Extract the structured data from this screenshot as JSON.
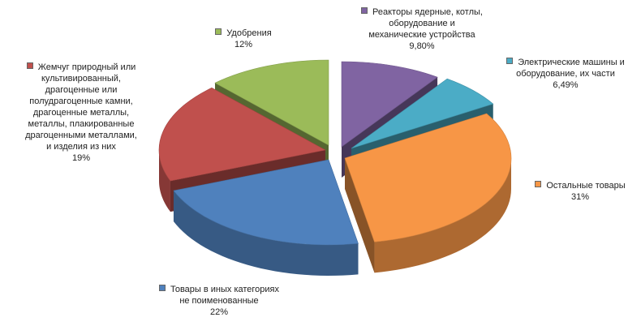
{
  "chart_data": {
    "type": "pie",
    "title": "",
    "slices": [
      {
        "label_lines": [
          "Реакторы ядерные,  котлы,",
          "оборудование и",
          "механические  устройства"
        ],
        "value_label": "9,80%",
        "value": 9.8,
        "color": "#8064A2"
      },
      {
        "label_lines": [
          "Электрические  машины и",
          "оборудование,  их части"
        ],
        "value_label": "6,49%",
        "value": 6.49,
        "color": "#4BACC6"
      },
      {
        "label_lines": [
          "Остальные товары"
        ],
        "value_label": "31%",
        "value": 31,
        "color": "#F79646"
      },
      {
        "label_lines": [
          "Товары в иных категориях",
          "не поименованные"
        ],
        "value_label": "22%",
        "value": 22,
        "color": "#4F81BD"
      },
      {
        "label_lines": [
          "Жемчуг природный или",
          "культивированный,",
          "драгоценные или",
          "полудрагоценные камни,",
          "драгоценные металлы,",
          "металлы, плакированные",
          "драгоценными металлами,",
          "и изделия из них"
        ],
        "value_label": "19%",
        "value": 19,
        "color": "#C0504D"
      },
      {
        "label_lines": [
          "Удобрения"
        ],
        "value_label": "12%",
        "value": 12,
        "color": "#9BBB59"
      }
    ]
  }
}
